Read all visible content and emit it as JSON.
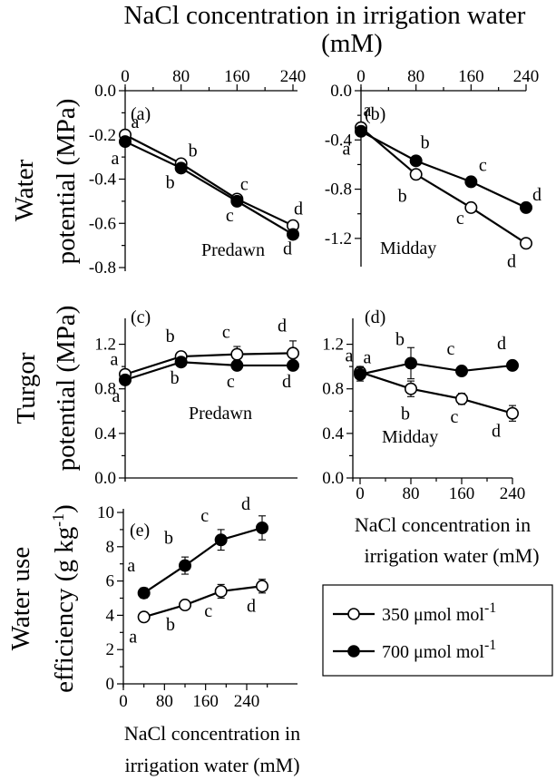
{
  "texts": {
    "top_label_line1": "NaCl concentration in irrigation water",
    "top_label_line2": "(mM)",
    "right_label_line1": "NaCl concentration in",
    "right_label_line2": "irrigation water (mM)",
    "bottom_label_line1": "NaCl concentration in",
    "bottom_label_line2": "irrigation water (mM)",
    "ylabel_water_1": "Water",
    "ylabel_water_2": "potential (MPa)",
    "ylabel_turgor_1": "Turgor",
    "ylabel_turgor_2": "potential (MPa)",
    "ylabel_wue_1": "Water use",
    "ylabel_wue_2": "efficiency (g kg",
    "ylabel_wue_sup": "-1",
    "ylabel_wue_3": ")"
  },
  "legend": {
    "item1_label": "350 μmol mol",
    "item1_sup": "-1",
    "item2_label": "700 μmol mol",
    "item2_sup": "-1"
  },
  "chart_data": [
    {
      "id": "a",
      "panel_label": "(a)",
      "type": "line",
      "annotation": "Predawn",
      "x_ticks": [
        "0",
        "80",
        "160",
        "240"
      ],
      "x_axis_position": "top",
      "ylim": [
        -0.8,
        0.0
      ],
      "y_ticks": [
        "0.0",
        "-0.2",
        "-0.4",
        "-0.6",
        "-0.8"
      ],
      "x": [
        0,
        80,
        160,
        240
      ],
      "series": [
        {
          "marker": "open",
          "values": [
            -0.2,
            -0.33,
            -0.49,
            -0.61
          ],
          "errors": [
            0.015,
            0.01,
            0.01,
            0.015
          ],
          "letters": [
            "a",
            "b",
            "c",
            "d"
          ]
        },
        {
          "marker": "filled",
          "values": [
            -0.23,
            -0.35,
            -0.5,
            -0.65
          ],
          "errors": [
            0.01,
            0.01,
            0.01,
            0.01
          ],
          "letters": [
            "a",
            "b",
            "c",
            "d"
          ]
        }
      ]
    },
    {
      "id": "b",
      "panel_label": "(b)",
      "type": "line",
      "annotation": "Midday",
      "x_ticks": [
        "0",
        "80",
        "160",
        "240"
      ],
      "x_axis_position": "top",
      "ylim": [
        -1.4,
        0.0
      ],
      "y_ticks": [
        "0.0",
        "-0.4",
        "-0.8",
        "-1.2"
      ],
      "x": [
        0,
        80,
        160,
        240
      ],
      "series": [
        {
          "marker": "open",
          "values": [
            -0.3,
            -0.68,
            -0.95,
            -1.24
          ],
          "errors": [
            0.02,
            0.02,
            0.02,
            0.02
          ],
          "letters": [
            "a",
            "b",
            "c",
            "d"
          ]
        },
        {
          "marker": "filled",
          "values": [
            -0.33,
            -0.57,
            -0.74,
            -0.95
          ],
          "errors": [
            0.02,
            0.02,
            0.02,
            0.02
          ],
          "letters": [
            "a",
            "b",
            "c",
            "d"
          ]
        }
      ]
    },
    {
      "id": "c",
      "panel_label": "(c)",
      "type": "line",
      "annotation": "Predawn",
      "x_ticks": [],
      "x_axis_position": "none",
      "ylim": [
        0.0,
        1.4
      ],
      "y_ticks": [
        "0.0",
        "0.4",
        "0.8",
        "1.2"
      ],
      "x": [
        0,
        80,
        160,
        240
      ],
      "series": [
        {
          "marker": "open",
          "values": [
            0.93,
            1.09,
            1.11,
            1.12
          ],
          "errors": [
            0.04,
            0.03,
            0.07,
            0.11
          ],
          "letters": [
            "a",
            "b",
            "c",
            "d"
          ]
        },
        {
          "marker": "filled",
          "values": [
            0.88,
            1.04,
            1.01,
            1.01
          ],
          "errors": [
            0.04,
            0.03,
            0.03,
            0.04
          ],
          "letters": [
            "a",
            "b",
            "c",
            "d"
          ]
        }
      ]
    },
    {
      "id": "d",
      "panel_label": "(d)",
      "type": "line",
      "annotation": "Midday",
      "x_ticks": [
        "0",
        "80",
        "160",
        "240"
      ],
      "x_axis_position": "bottom",
      "ylim": [
        0.0,
        1.4
      ],
      "y_ticks": [
        "0.0",
        "0.4",
        "0.8",
        "1.2"
      ],
      "x": [
        0,
        80,
        160,
        240
      ],
      "series": [
        {
          "marker": "open",
          "values": [
            0.95,
            0.8,
            0.71,
            0.58
          ],
          "errors": [
            0.05,
            0.07,
            0.05,
            0.07
          ],
          "letters": [
            "a",
            "b",
            "c",
            "d"
          ]
        },
        {
          "marker": "filled",
          "values": [
            0.93,
            1.03,
            0.96,
            1.01
          ],
          "errors": [
            0.06,
            0.14,
            0.03,
            0.03
          ],
          "letters": [
            "a",
            "b",
            "c",
            "d"
          ]
        }
      ]
    },
    {
      "id": "e",
      "panel_label": "(e)",
      "type": "line",
      "x_ticks": [
        "0",
        "80",
        "160",
        "240"
      ],
      "x_axis_position": "bottom",
      "ylim": [
        0,
        10
      ],
      "y_ticks": [
        "0",
        "2",
        "4",
        "6",
        "8",
        "10"
      ],
      "x_values": [
        40,
        120,
        190,
        270
      ],
      "series": [
        {
          "marker": "open",
          "values": [
            3.9,
            4.6,
            5.4,
            5.7
          ],
          "errors": [
            0.2,
            0.2,
            0.4,
            0.4
          ],
          "letters": [
            "a",
            "b",
            "c",
            "d"
          ]
        },
        {
          "marker": "filled",
          "values": [
            5.3,
            6.9,
            8.4,
            9.1
          ],
          "errors": [
            0.3,
            0.5,
            0.6,
            0.7
          ],
          "letters": [
            "a",
            "b",
            "c",
            "d"
          ]
        }
      ]
    }
  ]
}
